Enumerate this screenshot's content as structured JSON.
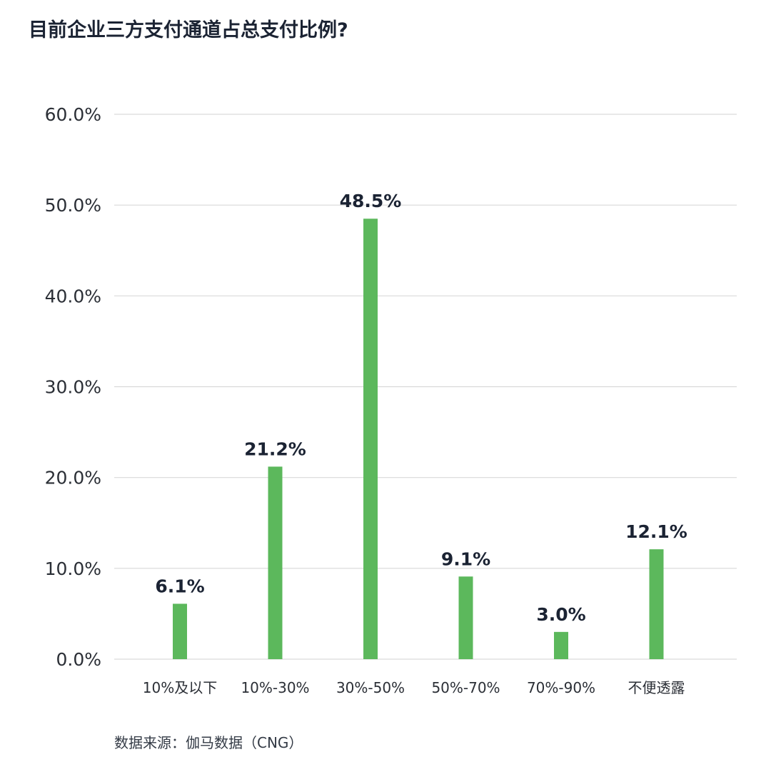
{
  "chart_data": {
    "type": "bar",
    "title": "目前企业三方支付通道占总支付比例?",
    "categories": [
      "10%及以下",
      "10%-30%",
      "30%-50%",
      "50%-70%",
      "70%-90%",
      "不便透露"
    ],
    "values": [
      6.1,
      21.2,
      48.5,
      9.1,
      3.0,
      12.1
    ],
    "data_labels": [
      "6.1%",
      "21.2%",
      "48.5%",
      "9.1%",
      "3.0%",
      "12.1%"
    ],
    "yticks": [
      0,
      10,
      20,
      30,
      40,
      50,
      60
    ],
    "ytick_labels": [
      "0.0%",
      "10.0%",
      "20.0%",
      "30.0%",
      "40.0%",
      "50.0%",
      "60.0%"
    ],
    "ylim": [
      0,
      60
    ],
    "xlabel": "",
    "ylabel": "",
    "grid": true,
    "colors": {
      "bar": "#5cb85c",
      "grid": "#d9d9d9",
      "label": "#1b2333",
      "tick": "#2b2f36"
    }
  },
  "source": "数据来源：伽马数据（CNG）"
}
